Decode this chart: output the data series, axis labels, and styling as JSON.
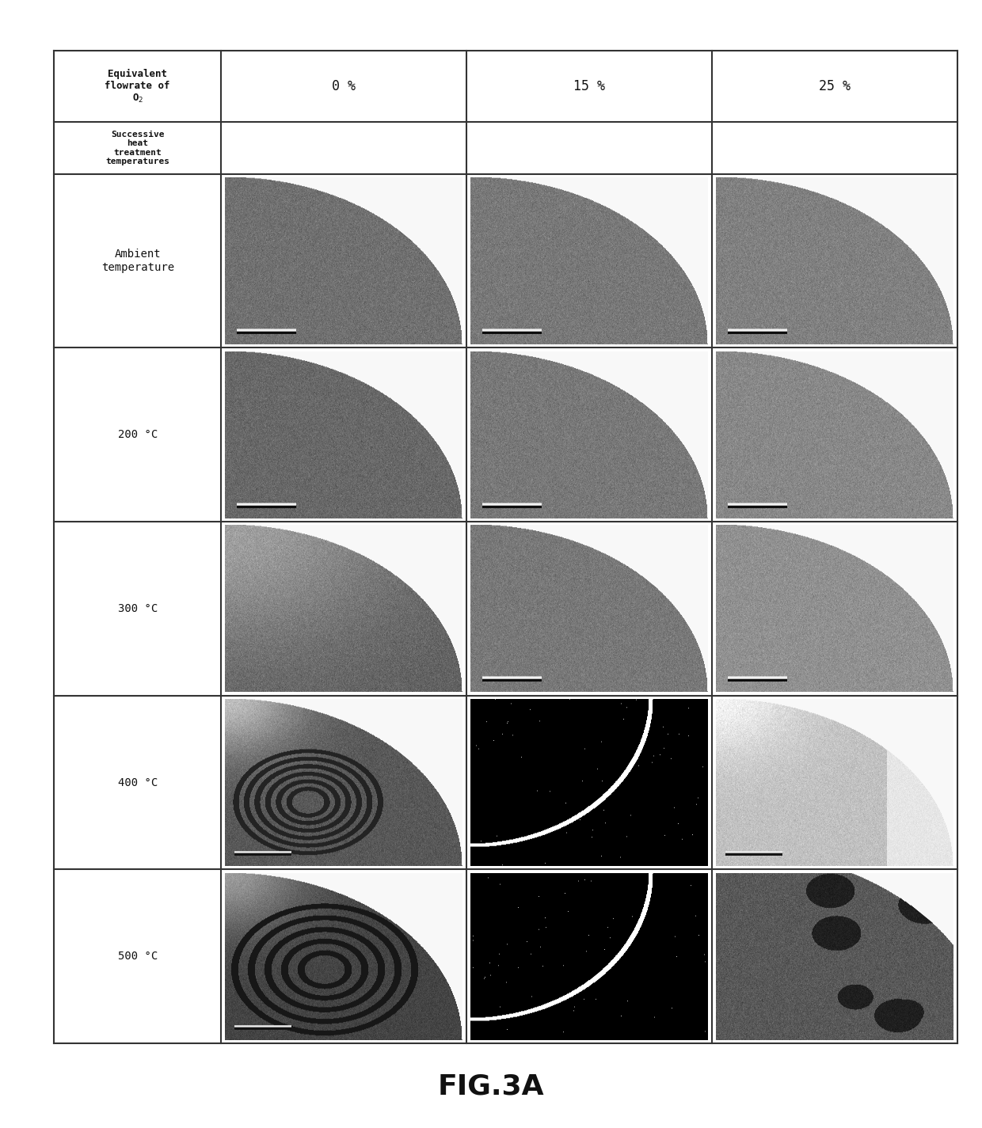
{
  "title": "FIG.3A",
  "col_headers": [
    "0 %",
    "15 %",
    "25 %"
  ],
  "row_header1": "Equivalent\nflowrate of\nO₂",
  "row_header2": "Successive\nheat\ntreatment\ntemperatures",
  "row_labels": [
    "Ambient\ntemperature",
    "200 °C",
    "300 °C",
    "400 °C",
    "500 °C"
  ],
  "bg_color": "#ffffff",
  "grid_color": "#333333",
  "fig_width": 12.4,
  "fig_height": 14.25,
  "cells": {
    "0_0": {
      "bg": "#e8e8e8",
      "fg": "#707070",
      "type": "qc_white_bg",
      "top_corner": "#cccccc",
      "has_scalebar": true,
      "sb_pos": "bottom_left"
    },
    "0_1": {
      "bg": "#e8e8e8",
      "fg": "#787878",
      "type": "qc_white_bg",
      "top_corner": "#cccccc",
      "has_scalebar": true,
      "sb_pos": "bottom_left"
    },
    "0_2": {
      "bg": "#e0e0e0",
      "fg": "#808080",
      "type": "qc_white_bg",
      "top_corner": "#c0c0c0",
      "has_scalebar": true,
      "sb_pos": "bottom_left"
    },
    "1_0": {
      "bg": "#e8e8e8",
      "fg": "#686868",
      "type": "qc_white_bg",
      "top_corner": "#d0d0d0",
      "has_scalebar": true,
      "sb_pos": "bottom_left"
    },
    "1_1": {
      "bg": "#e8e8e8",
      "fg": "#787878",
      "type": "qc_white_bg",
      "top_corner": "#cccccc",
      "has_scalebar": true,
      "sb_pos": "bottom_left"
    },
    "1_2": {
      "bg": "#d8d8d8",
      "fg": "#888888",
      "type": "qc_white_bg",
      "top_corner": "#c0c0c0",
      "has_scalebar": true,
      "sb_pos": "bottom_left"
    },
    "2_0": {
      "bg": "#f0f0f0",
      "fg": "#606060",
      "type": "qc_bright_topleft",
      "has_scalebar": false
    },
    "2_1": {
      "bg": "#e8e8e8",
      "fg": "#787878",
      "type": "qc_white_bg",
      "top_corner": "#d0d0d0",
      "has_scalebar": true,
      "sb_pos": "bottom_left"
    },
    "2_2": {
      "bg": "#d0d0d0",
      "fg": "#909090",
      "type": "qc_white_bg",
      "top_corner": "#b8b8b8",
      "has_scalebar": true,
      "sb_pos": "bottom_right"
    },
    "3_0": {
      "bg": "#d0d0d0",
      "fg": "#585858",
      "type": "qc_rings",
      "top_corner": "#e0e0e0",
      "has_scalebar": true,
      "sb_pos": "bottom_left"
    },
    "3_1": {
      "bg": "#060606",
      "fg": "#080808",
      "type": "dark_arc",
      "arc_color": "#ffffff",
      "has_scalebar": true
    },
    "3_2": {
      "bg": "#e0e0e0",
      "fg": "#c0c0c0",
      "type": "qc_partial_right",
      "has_scalebar": true,
      "sb_pos": "bottom_left"
    },
    "4_0": {
      "bg": "#c8c8c8",
      "fg": "#505050",
      "type": "qc_rings_large",
      "top_corner": "#e8e8e8",
      "has_scalebar": true,
      "sb_pos": "bottom_left"
    },
    "4_1": {
      "bg": "#060606",
      "fg": "#080808",
      "type": "dark_arc",
      "arc_color": "#ffffff",
      "has_scalebar": true
    },
    "4_2": {
      "bg": "#c0c0c0",
      "fg": "#686868",
      "type": "qc_dark_large",
      "has_scalebar": false
    }
  }
}
